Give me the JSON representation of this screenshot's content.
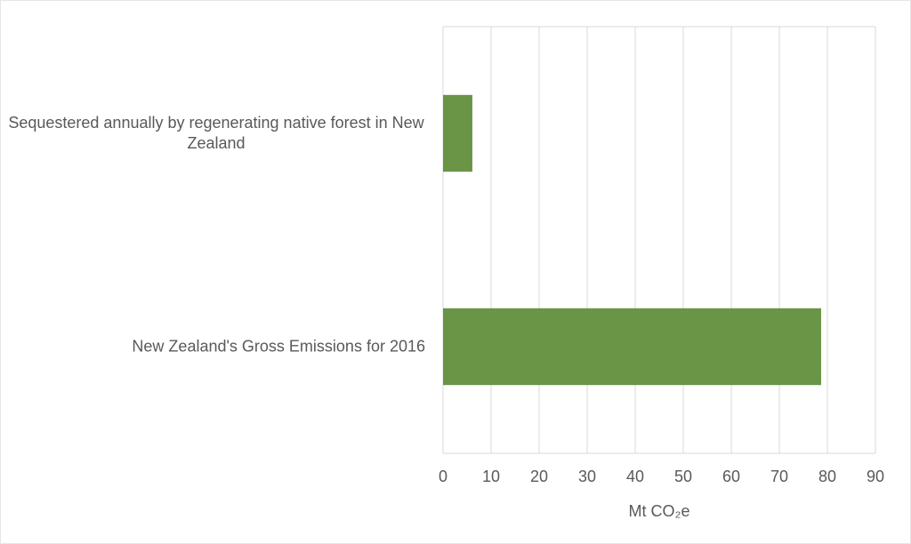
{
  "chart_data": {
    "type": "barh",
    "categories": [
      "Sequestered annually by regenerating native forest in New Zealand",
      "New Zealand's Gross Emissions for 2016"
    ],
    "values": [
      6.1,
      78.7
    ],
    "color": "#6a9446",
    "xlabel": "Mt CO₂e",
    "xlim": [
      0,
      90
    ],
    "xticks": [
      0,
      10,
      20,
      30,
      40,
      50,
      60,
      70,
      80,
      90
    ],
    "grid": true
  }
}
